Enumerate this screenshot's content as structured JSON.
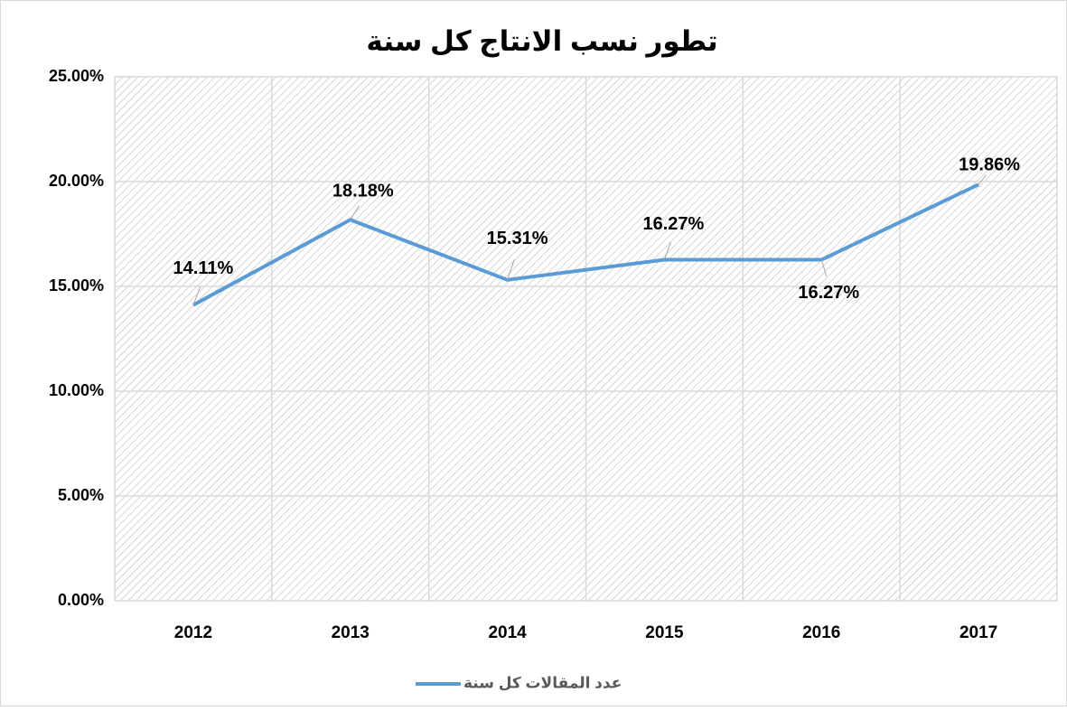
{
  "chart_data": {
    "type": "line",
    "title": "تطور نسب الانتاج كل سنة",
    "categories": [
      "2012",
      "2013",
      "2014",
      "2015",
      "2016",
      "2017"
    ],
    "series": [
      {
        "name": "عدد المقالات كل سنة",
        "color": "#5b9bd5",
        "values": [
          14.11,
          18.18,
          15.31,
          16.27,
          16.27,
          19.86
        ],
        "value_labels": [
          "14.11%",
          "18.18%",
          "15.31%",
          "16.27%",
          "16.27%",
          "19.86%"
        ]
      }
    ],
    "ylim": [
      0,
      25
    ],
    "yticks": [
      {
        "value": 0,
        "label": "0.00%"
      },
      {
        "value": 5,
        "label": "5.00%"
      },
      {
        "value": 10,
        "label": "10.00%"
      },
      {
        "value": 15,
        "label": "15.00%"
      },
      {
        "value": 20,
        "label": "20.00%"
      },
      {
        "value": 25,
        "label": "25.00%"
      }
    ],
    "grid": true,
    "legend": "bottom"
  }
}
